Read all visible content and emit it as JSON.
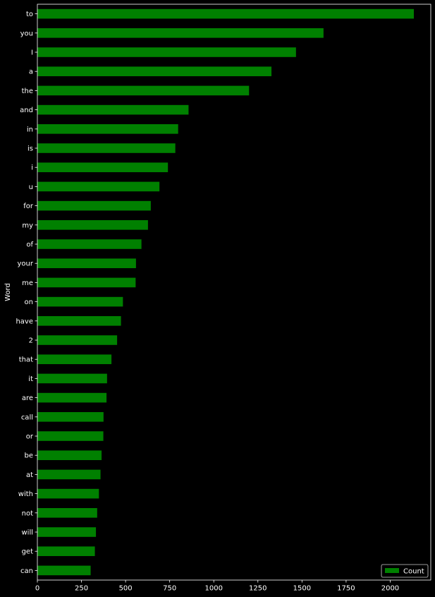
{
  "chart_data": {
    "type": "bar",
    "orientation": "horizontal",
    "title": "",
    "xlabel": "",
    "ylabel": "Word",
    "xlim": [
      0,
      2230
    ],
    "x_ticks": [
      0,
      250,
      500,
      750,
      1000,
      1250,
      1500,
      1750,
      2000
    ],
    "grid": false,
    "legend_position": "lower-right",
    "colors": {
      "background": "#000000",
      "bar": "#008000",
      "axis": "#ffffff",
      "text": "#ffffff"
    },
    "categories": [
      "to",
      "you",
      "I",
      "a",
      "the",
      "and",
      "in",
      "is",
      "i",
      "u",
      "for",
      "my",
      "of",
      "your",
      "me",
      "on",
      "have",
      "2",
      "that",
      "it",
      "are",
      "call",
      "or",
      "be",
      "at",
      "with",
      "not",
      "will",
      "get",
      "can"
    ],
    "series": [
      {
        "name": "Count",
        "values": [
          2134,
          1622,
          1466,
          1327,
          1200,
          857,
          798,
          782,
          740,
          692,
          643,
          627,
          590,
          559,
          557,
          485,
          474,
          452,
          420,
          395,
          392,
          375,
          374,
          364,
          358,
          349,
          339,
          332,
          326,
          302
        ]
      }
    ]
  }
}
